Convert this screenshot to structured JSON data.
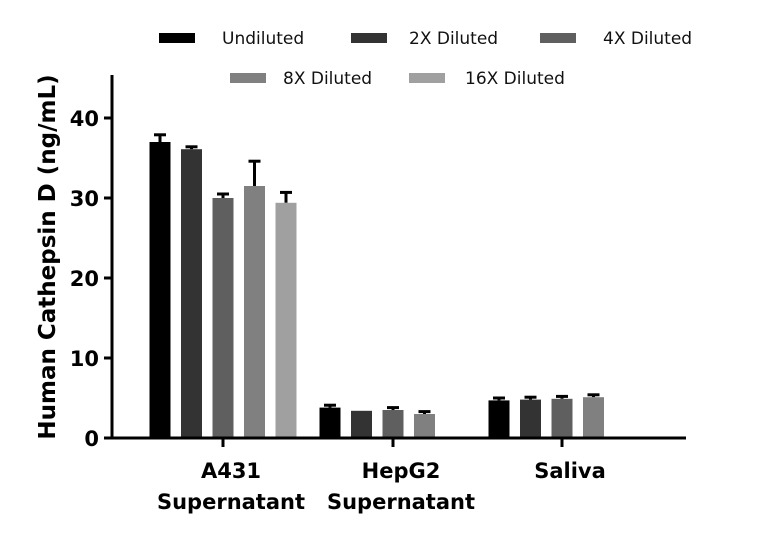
{
  "chart_data": {
    "type": "bar",
    "title": "",
    "xlabel": "",
    "ylabel": "Human Cathepsin D (ng/mL)",
    "ylim": [
      0,
      45
    ],
    "yticks": [
      0,
      10,
      20,
      30,
      40
    ],
    "grid": false,
    "legend_position": "top",
    "categories": [
      {
        "lines": [
          "A431",
          "Supernatant"
        ]
      },
      {
        "lines": [
          "HepG2",
          "Supernatant"
        ]
      },
      {
        "lines": [
          "Saliva"
        ]
      }
    ],
    "category_names": [
      "A431 Supernatant",
      "HepG2 Supernatant",
      "Saliva"
    ],
    "series": [
      {
        "name": "Undiluted",
        "color": "#000000",
        "values": [
          37.0,
          3.8,
          4.7
        ],
        "errors": [
          0.9,
          0.3,
          0.3
        ]
      },
      {
        "name": "2X Diluted",
        "color": "#333333",
        "values": [
          36.1,
          3.4,
          4.8
        ],
        "errors": [
          0.3,
          0.0,
          0.3
        ]
      },
      {
        "name": "4X Diluted",
        "color": "#5f5f5f",
        "values": [
          30.0,
          3.5,
          4.9
        ],
        "errors": [
          0.5,
          0.3,
          0.3
        ]
      },
      {
        "name": "8X Diluted",
        "color": "#808080",
        "values": [
          31.5,
          3.0,
          5.1
        ],
        "errors": [
          3.1,
          0.3,
          0.3
        ]
      },
      {
        "name": "16X Diluted",
        "color": "#a0a0a0",
        "values": [
          29.4,
          null,
          null
        ],
        "errors": [
          1.3,
          null,
          null
        ]
      }
    ]
  }
}
